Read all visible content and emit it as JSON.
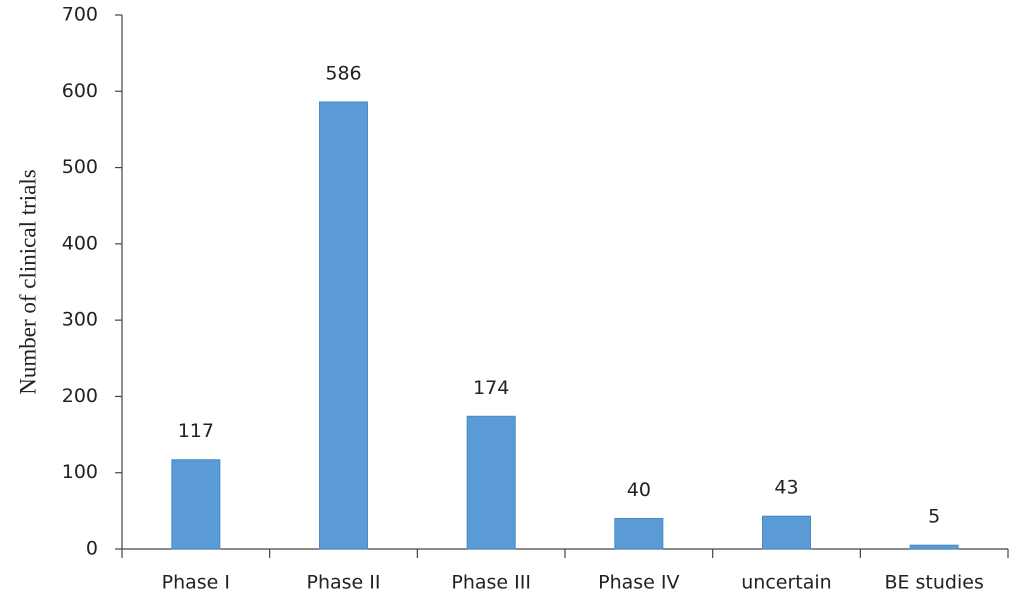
{
  "chart_data": {
    "type": "bar",
    "y_label": "Number of clinical trials",
    "categories": [
      "Phase I",
      "Phase II",
      "Phase III",
      "Phase IV",
      "uncertain",
      "BE studies"
    ],
    "values": [
      117,
      586,
      174,
      40,
      43,
      5
    ],
    "color": "#5b9bd5",
    "show_value_labels": true,
    "ylim": [
      0,
      700
    ],
    "yticks": [
      0,
      100,
      200,
      300,
      400,
      500,
      600,
      700
    ],
    "grid": false
  }
}
